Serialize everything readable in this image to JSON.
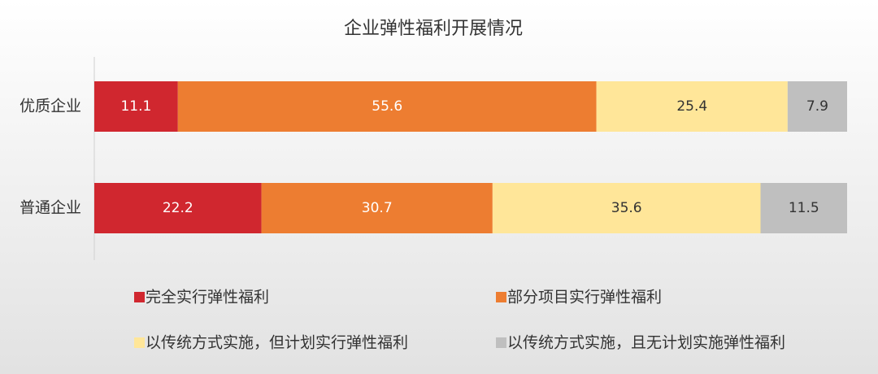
{
  "chart_data": {
    "type": "stacked-barh",
    "title": "企业弹性福利开展情况",
    "categories": [
      "优质企业",
      "普通企业"
    ],
    "series": [
      {
        "name": "完全实行弹性福利",
        "color": "#d0272f",
        "values": [
          11.1,
          22.2
        ]
      },
      {
        "name": "部分项目实行弹性福利",
        "color": "#ed7d31",
        "values": [
          55.6,
          30.7
        ]
      },
      {
        "name": "以传统方式实施，但计划实行弹性福利",
        "color": "#ffe699",
        "values": [
          25.4,
          35.6
        ]
      },
      {
        "name": "以传统方式实施，且无计划实施弹性福利",
        "color": "#bfbfbf",
        "values": [
          7.9,
          11.5
        ]
      }
    ],
    "legend": "bottom"
  }
}
